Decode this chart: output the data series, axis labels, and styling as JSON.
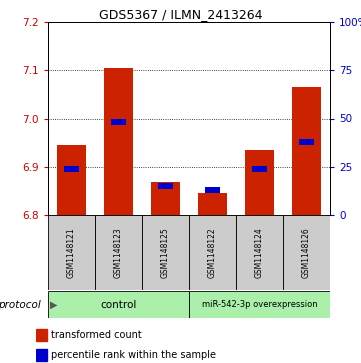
{
  "title": "GDS5367 / ILMN_2413264",
  "samples": [
    "GSM1148121",
    "GSM1148123",
    "GSM1148125",
    "GSM1148122",
    "GSM1148124",
    "GSM1148126"
  ],
  "transformed_counts": [
    6.945,
    7.105,
    6.868,
    6.845,
    6.935,
    7.065
  ],
  "percentile_ranks": [
    24,
    48,
    15,
    13,
    24,
    38
  ],
  "ylim_left": [
    6.8,
    7.2
  ],
  "ylim_right": [
    0,
    100
  ],
  "yticks_left": [
    6.8,
    6.9,
    7.0,
    7.1,
    7.2
  ],
  "yticks_right": [
    0,
    25,
    50,
    75,
    100
  ],
  "bar_base": 6.8,
  "bar_color": "#cc2200",
  "percentile_color": "#0000cc",
  "control_label": "control",
  "overexp_label": "miR-542-3p overexpression",
  "group_color": "#aaf0aa",
  "sample_box_color": "#cccccc",
  "legend_red_label": "transformed count",
  "legend_blue_label": "percentile rank within the sample",
  "protocol_label": "protocol",
  "bar_width": 0.6
}
